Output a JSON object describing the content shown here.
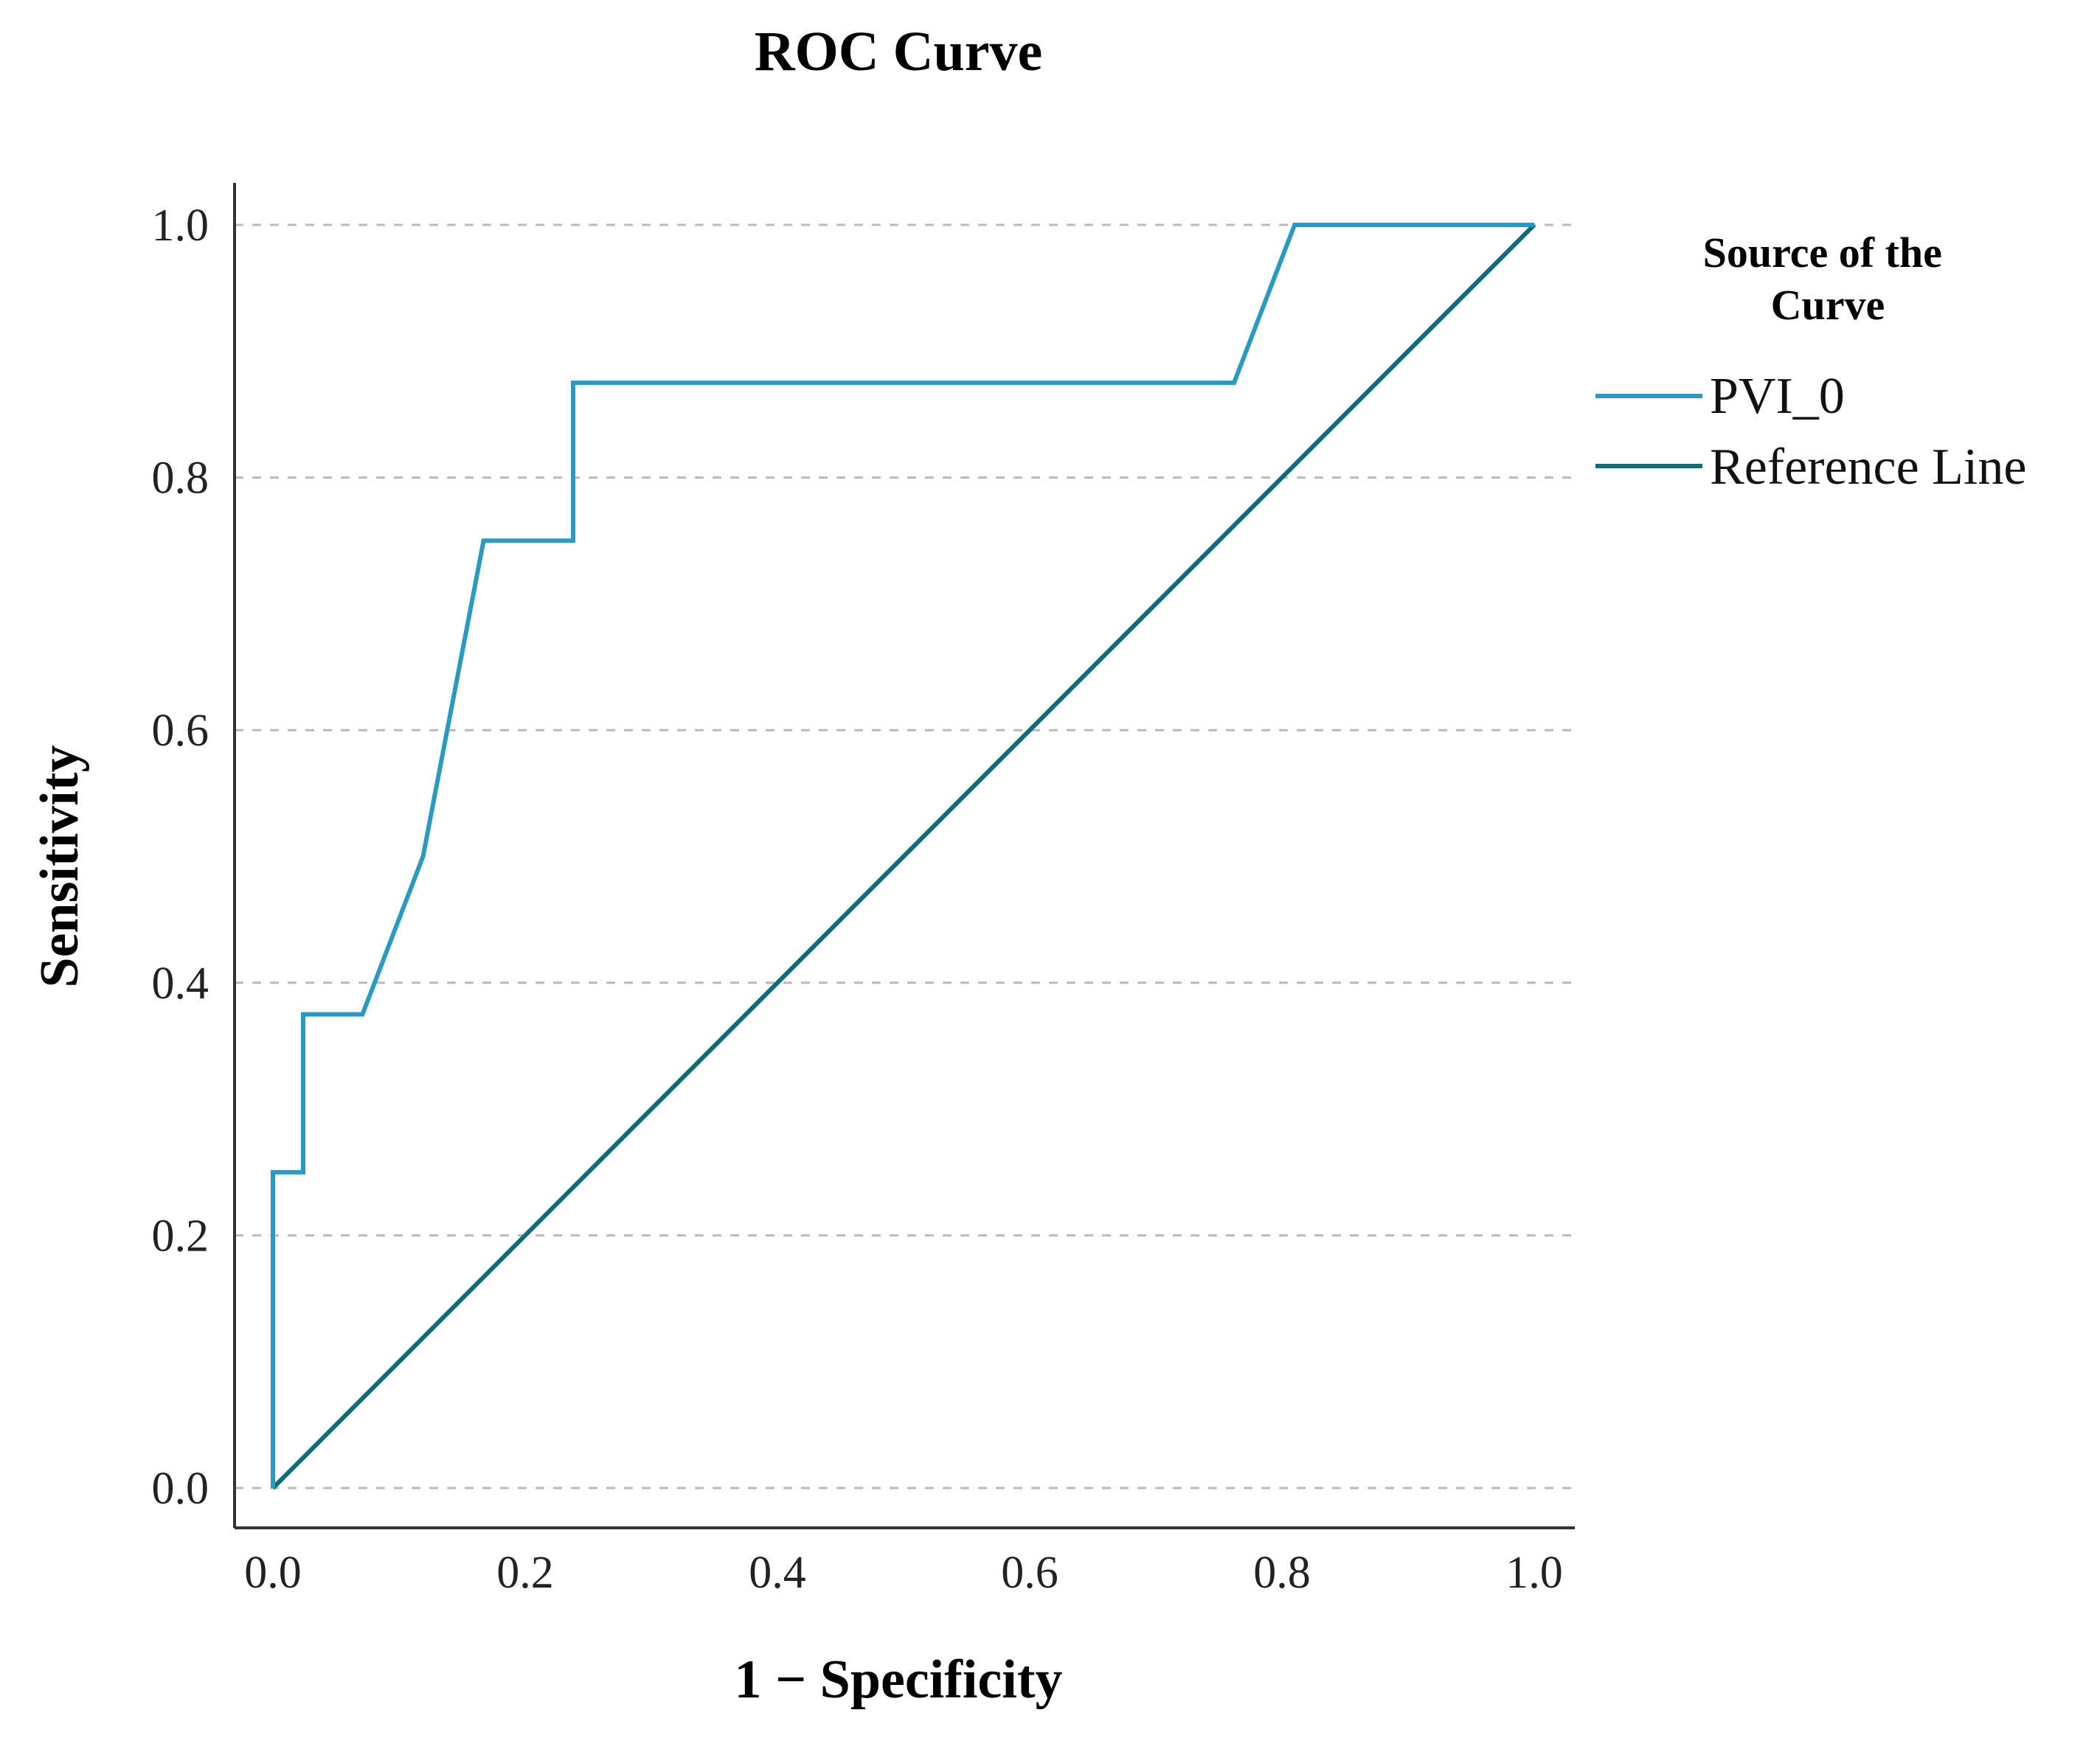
{
  "chart_data": {
    "type": "line",
    "title": "ROC Curve",
    "xlabel": "1 − Specificity",
    "ylabel": "Sensitivity",
    "xlim": [
      0,
      1
    ],
    "ylim": [
      0,
      1
    ],
    "x_ticks": [
      {
        "value": 0.0,
        "label": "0.0"
      },
      {
        "value": 0.2,
        "label": "0.2"
      },
      {
        "value": 0.4,
        "label": "0.4"
      },
      {
        "value": 0.6,
        "label": "0.6"
      },
      {
        "value": 0.8,
        "label": "0.8"
      },
      {
        "value": 1.0,
        "label": "1.0"
      }
    ],
    "y_ticks": [
      {
        "value": 0.0,
        "label": "0.0"
      },
      {
        "value": 0.2,
        "label": "0.2"
      },
      {
        "value": 0.4,
        "label": "0.4"
      },
      {
        "value": 0.6,
        "label": "0.6"
      },
      {
        "value": 0.8,
        "label": "0.8"
      },
      {
        "value": 1.0,
        "label": "1.0"
      }
    ],
    "grid": "horizontal-dashed",
    "legend": {
      "title": "Source of the Curve",
      "title_lines": [
        "Source of the",
        "Curve"
      ],
      "position": "right"
    },
    "series": [
      {
        "name": "PVI_0",
        "color": "#2a9ac2",
        "x": [
          0.0,
          0.0,
          0.024,
          0.024,
          0.071,
          0.119,
          0.143,
          0.167,
          0.238,
          0.238,
          0.762,
          0.81,
          1.0
        ],
        "y": [
          0.0,
          0.25,
          0.25,
          0.375,
          0.375,
          0.5,
          0.625,
          0.75,
          0.75,
          0.875,
          0.875,
          1.0,
          1.0
        ]
      },
      {
        "name": "Reference Line",
        "color": "#0d6b7a",
        "x": [
          0.0,
          1.0
        ],
        "y": [
          0.0,
          1.0
        ]
      }
    ]
  },
  "colors": {
    "axis": "#333333",
    "grid": "#bbbbbb",
    "text": "#111111"
  }
}
